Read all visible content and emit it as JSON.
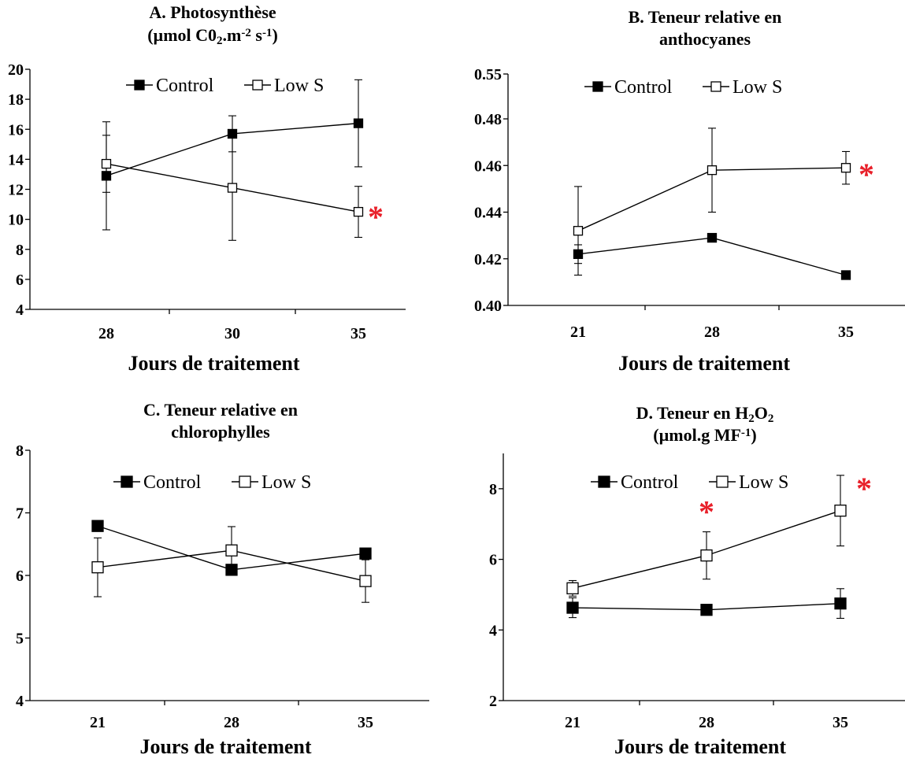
{
  "colors": {
    "significance_star": "#e8202a",
    "line": "#000000",
    "filled_marker": "#000000",
    "open_marker": "#ffffff"
  },
  "chart_data": [
    {
      "type": "line",
      "title_lines": [
        "A. Photosynthèse",
        "(µmol C0₂.m⁻² s⁻¹)"
      ],
      "xlabel": "Jours de traitement",
      "ylabel": "",
      "categories": [
        "28",
        "30",
        "35"
      ],
      "ylim": [
        4,
        20
      ],
      "yticks": [
        "4",
        "6",
        "8",
        "10",
        "12",
        "14",
        "16",
        "18",
        "20"
      ],
      "legend_position": "top",
      "significance": [
        {
          "category": "35",
          "symbol": "*"
        }
      ],
      "series": [
        {
          "name": "Control",
          "marker": "filled-square",
          "values": [
            12.9,
            15.7,
            16.4
          ],
          "err": [
            3.6,
            1.2,
            2.9
          ]
        },
        {
          "name": "Low S",
          "marker": "open-square",
          "values": [
            13.7,
            12.1,
            10.5
          ],
          "err": [
            1.9,
            3.5,
            1.7
          ]
        }
      ]
    },
    {
      "type": "line",
      "title_lines": [
        "B. Teneur relative en",
        "anthocyanes"
      ],
      "xlabel": "Jours de traitement",
      "ylabel": "",
      "categories": [
        "21",
        "28",
        "35"
      ],
      "ylim": [
        0.4,
        0.55
      ],
      "yticks": [
        "0.40",
        "0.42",
        "0.44",
        "0.46",
        "0.48",
        "0.55"
      ],
      "legend_position": "top",
      "significance": [
        {
          "category": "35",
          "symbol": "*"
        }
      ],
      "series": [
        {
          "name": "Control",
          "marker": "filled-square",
          "values": [
            0.422,
            0.429,
            0.413
          ],
          "err": [
            0.004,
            0,
            0
          ]
        },
        {
          "name": "Low S",
          "marker": "open-square",
          "values": [
            0.432,
            0.458,
            0.459
          ],
          "err": [
            0.019,
            0.018,
            0.007
          ]
        }
      ]
    },
    {
      "type": "line",
      "title_lines": [
        "C. Teneur relative en",
        "chlorophylles"
      ],
      "xlabel": "Jours de traitement",
      "ylabel": "",
      "categories": [
        "21",
        "28",
        "35"
      ],
      "ylim": [
        4,
        8
      ],
      "yticks": [
        "4",
        "5",
        "6",
        "7",
        "8"
      ],
      "legend_position": "top",
      "significance": [],
      "series": [
        {
          "name": "Control",
          "marker": "filled-square",
          "values": [
            6.79,
            6.09,
            6.35
          ],
          "err": [
            0,
            0,
            0
          ]
        },
        {
          "name": "Low S",
          "marker": "open-square",
          "values": [
            6.13,
            6.4,
            5.91
          ],
          "err": [
            0.47,
            0.38,
            0.34
          ]
        }
      ]
    },
    {
      "type": "line",
      "title_lines": [
        "D. Teneur en H₂O₂",
        "(µmol.g MF⁻¹)"
      ],
      "xlabel": "Jours de traitement",
      "ylabel": "",
      "categories": [
        "21",
        "28",
        "35"
      ],
      "ylim": [
        2,
        9
      ],
      "yticks": [
        "2",
        "4",
        "6",
        "8"
      ],
      "legend_position": "top",
      "significance": [
        {
          "category": "28",
          "symbol": "*"
        },
        {
          "category": "35",
          "symbol": "*"
        }
      ],
      "series": [
        {
          "name": "Control",
          "marker": "filled-square",
          "values": [
            4.63,
            4.57,
            4.75
          ],
          "err": [
            0.28,
            0,
            0.42
          ]
        },
        {
          "name": "Low S",
          "marker": "open-square",
          "values": [
            5.18,
            6.11,
            7.38
          ],
          "err": [
            0.22,
            0.67,
            1.0
          ]
        }
      ]
    }
  ]
}
